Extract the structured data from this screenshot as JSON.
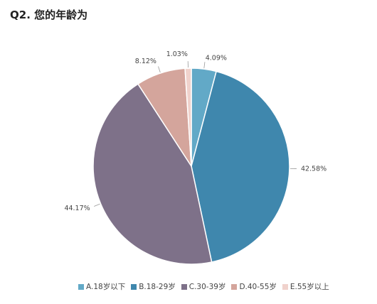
{
  "title": "Q2. 您的年龄为",
  "chart_data": {
    "type": "pie",
    "title": "Q2. 您的年龄为",
    "slices": [
      {
        "label": "A.18岁以下",
        "value": 4.09,
        "value_label": "4.09%",
        "color": "#62a9c7"
      },
      {
        "label": "B.18-29岁",
        "value": 42.58,
        "value_label": "42.58%",
        "color": "#3f87ad"
      },
      {
        "label": "C.30-39岁",
        "value": 44.17,
        "value_label": "44.17%",
        "color": "#7e7189"
      },
      {
        "label": "D.40-55岁",
        "value": 8.12,
        "value_label": "8.12%",
        "color": "#d4a59c"
      },
      {
        "label": "E.55岁以上",
        "value": 1.03,
        "value_label": "1.03%",
        "color": "#f0d2cc"
      }
    ],
    "start": "12 o'clock",
    "direction": "clockwise",
    "legend": "bottom"
  }
}
